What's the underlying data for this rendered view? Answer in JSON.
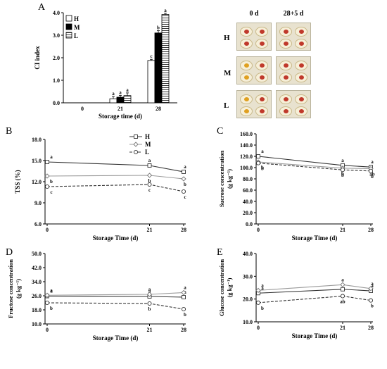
{
  "panel_labels": {
    "A": "A",
    "B": "B",
    "C": "C",
    "D": "D",
    "E": "E"
  },
  "photos": {
    "col_labels": [
      "0 d",
      "28+5 d"
    ],
    "row_labels": [
      "H",
      "M",
      "L"
    ],
    "colors": {
      "flesh": "#f6efd8",
      "browning_red": "#c0392b",
      "browning_yellow": "#e0a020",
      "tray": "#e8e2cf"
    }
  },
  "chart_data": [
    {
      "id": "A",
      "type": "bar",
      "categories": [
        "0",
        "21",
        "28"
      ],
      "series": [
        {
          "name": "H",
          "values": [
            0,
            0.18,
            1.88
          ],
          "errors": [
            0,
            0.1,
            0.05
          ],
          "letters": [
            "",
            "a",
            "c"
          ],
          "fill": "white"
        },
        {
          "name": "M",
          "values": [
            0,
            0.25,
            3.1
          ],
          "errors": [
            0,
            0.08,
            0.1
          ],
          "letters": [
            "",
            "a",
            "b"
          ],
          "fill": "black"
        },
        {
          "name": "L",
          "values": [
            0,
            0.32,
            3.92
          ],
          "errors": [
            0,
            0.12,
            0.05
          ],
          "letters": [
            "",
            "a",
            "a"
          ],
          "fill": "hatch"
        }
      ],
      "xlabel": "Storage time (d)",
      "ylabel": "CI index",
      "ylim": [
        0,
        4.0
      ],
      "yticks": [
        "0.0",
        "1.0",
        "2.0",
        "3.0",
        "4.0"
      ],
      "legend": "top-left"
    },
    {
      "id": "B",
      "type": "line",
      "x": [
        0,
        21,
        28
      ],
      "x_tick_labels": [
        "0",
        "21",
        "28"
      ],
      "series": [
        {
          "name": "H",
          "values": [
            14.8,
            14.3,
            13.4
          ],
          "letters": [
            "a",
            "a",
            "a"
          ],
          "marker": "square",
          "dash": "solid",
          "color": "#333333"
        },
        {
          "name": "M",
          "values": [
            12.8,
            12.9,
            12.4
          ],
          "letters": [
            "b",
            "b",
            "b"
          ],
          "marker": "diamond",
          "dash": "solid",
          "color": "#9a9a9a"
        },
        {
          "name": "L",
          "values": [
            11.3,
            11.6,
            10.6
          ],
          "letters": [
            "c",
            "c",
            "c"
          ],
          "marker": "circle",
          "dash": "dashed",
          "color": "#333333"
        }
      ],
      "xlabel": "Storage Time (d)",
      "ylabel": "TSS (%)",
      "ylim": [
        6.0,
        18.0
      ],
      "yticks": [
        "6.0",
        "9.0",
        "12.0",
        "15.0",
        "18.0"
      ],
      "legend": "top-center"
    },
    {
      "id": "C",
      "type": "line",
      "x": [
        0,
        21,
        28
      ],
      "x_tick_labels": [
        "0",
        "21",
        "28"
      ],
      "series": [
        {
          "name": "H",
          "values": [
            120,
            104,
            101
          ],
          "letters": [
            "a",
            "a",
            "a"
          ],
          "marker": "square",
          "dash": "solid",
          "color": "#333333"
        },
        {
          "name": "M",
          "values": [
            110,
            99,
            98
          ],
          "letters": [
            "b",
            "b",
            "ab"
          ],
          "marker": "diamond",
          "dash": "solid",
          "color": "#9a9a9a"
        },
        {
          "name": "L",
          "values": [
            108,
            96,
            94
          ],
          "letters": [
            "b",
            "b",
            "b"
          ],
          "marker": "circle",
          "dash": "dashed",
          "color": "#333333"
        }
      ],
      "xlabel": "Storage Time (d)",
      "ylabel": "Sucrose concentration",
      "ylabel_unit": "(g kg⁻¹)",
      "ylim": [
        0,
        160.0
      ],
      "yticks": [
        "0.0",
        "20.0",
        "40.0",
        "60.0",
        "80.0",
        "100.0",
        "120.0",
        "140.0",
        "160.0"
      ]
    },
    {
      "id": "D",
      "type": "line",
      "x": [
        0,
        21,
        28
      ],
      "x_tick_labels": [
        "0",
        "21",
        "28"
      ],
      "series": [
        {
          "name": "H",
          "values": [
            25.8,
            25.6,
            25.2
          ],
          "letters": [
            "a",
            "a",
            "a"
          ],
          "marker": "square",
          "dash": "solid",
          "color": "#333333"
        },
        {
          "name": "M",
          "values": [
            26.3,
            26.8,
            27.8
          ],
          "letters": [
            "a",
            "a",
            "a"
          ],
          "marker": "diamond",
          "dash": "solid",
          "color": "#9a9a9a"
        },
        {
          "name": "L",
          "values": [
            22.0,
            21.6,
            18.4
          ],
          "letters": [
            "b",
            "b",
            "b"
          ],
          "marker": "circle",
          "dash": "dashed",
          "color": "#333333"
        }
      ],
      "xlabel": "Storage Time (d)",
      "ylabel": "Fructose concentration",
      "ylabel_unit": "(g kg⁻¹)",
      "ylim": [
        10.0,
        50.0
      ],
      "yticks": [
        "10.0",
        "18.0",
        "26.0",
        "34.0",
        "42.0",
        "50.0"
      ]
    },
    {
      "id": "E",
      "type": "line",
      "x": [
        0,
        21,
        28
      ],
      "x_tick_labels": [
        "0",
        "21",
        "28"
      ],
      "series": [
        {
          "name": "H",
          "values": [
            22.6,
            24.3,
            23.6
          ],
          "letters": [
            "a",
            "a",
            "a"
          ],
          "marker": "square",
          "dash": "solid",
          "color": "#333333"
        },
        {
          "name": "M",
          "values": [
            23.8,
            26.3,
            24.6
          ],
          "letters": [
            "a",
            "a",
            "a"
          ],
          "marker": "diamond",
          "dash": "solid",
          "color": "#9a9a9a"
        },
        {
          "name": "L",
          "values": [
            18.4,
            21.3,
            19.4
          ],
          "letters": [
            "b",
            "ab",
            "b"
          ],
          "marker": "circle",
          "dash": "dashed",
          "color": "#333333"
        }
      ],
      "xlabel": "Storage Time (d)",
      "ylabel": "Glucose concentration",
      "ylabel_unit": "(g kg⁻¹)",
      "ylim": [
        10.0,
        40.0
      ],
      "yticks": [
        "10.0",
        "20.0",
        "30.0",
        "40.0"
      ]
    }
  ]
}
